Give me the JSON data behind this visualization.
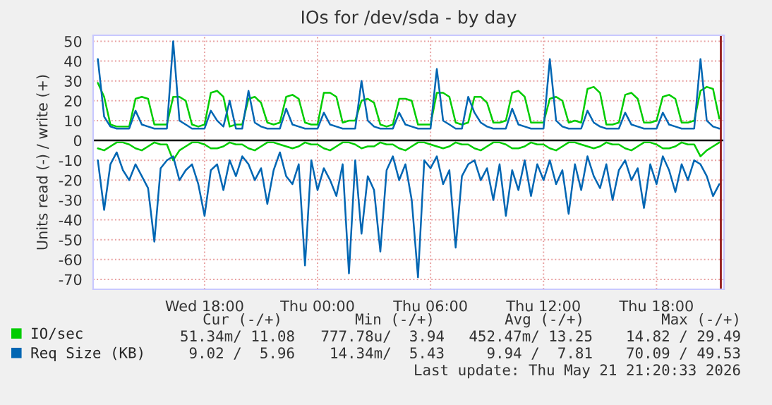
{
  "chart_data": {
    "type": "line",
    "title": "IOs for /dev/sda - by day",
    "ylabel": "Units read (-) / write (+)",
    "x": [
      "2026-05-20T12:20",
      "2026-05-20T12:40",
      "2026-05-20T13:00",
      "2026-05-20T13:20",
      "2026-05-20T13:40",
      "2026-05-20T14:00",
      "2026-05-20T14:20",
      "2026-05-20T14:40",
      "2026-05-20T15:00",
      "2026-05-20T15:20",
      "2026-05-20T15:40",
      "2026-05-20T16:00",
      "2026-05-20T16:20",
      "2026-05-20T16:40",
      "2026-05-20T17:00",
      "2026-05-20T17:20",
      "2026-05-20T17:40",
      "2026-05-20T18:00",
      "2026-05-20T18:20",
      "2026-05-20T18:40",
      "2026-05-20T19:00",
      "2026-05-20T19:20",
      "2026-05-20T19:40",
      "2026-05-20T20:00",
      "2026-05-20T20:20",
      "2026-05-20T20:40",
      "2026-05-20T21:00",
      "2026-05-20T21:20",
      "2026-05-20T21:40",
      "2026-05-20T22:00",
      "2026-05-20T22:20",
      "2026-05-20T22:40",
      "2026-05-20T23:00",
      "2026-05-20T23:20",
      "2026-05-20T23:40",
      "2026-05-21T00:00",
      "2026-05-21T00:20",
      "2026-05-21T00:40",
      "2026-05-21T01:00",
      "2026-05-21T01:20",
      "2026-05-21T01:40",
      "2026-05-21T02:00",
      "2026-05-21T02:20",
      "2026-05-21T02:40",
      "2026-05-21T03:00",
      "2026-05-21T03:20",
      "2026-05-21T03:40",
      "2026-05-21T04:00",
      "2026-05-21T04:20",
      "2026-05-21T04:40",
      "2026-05-21T05:00",
      "2026-05-21T05:20",
      "2026-05-21T05:40",
      "2026-05-21T06:00",
      "2026-05-21T06:20",
      "2026-05-21T06:40",
      "2026-05-21T07:00",
      "2026-05-21T07:20",
      "2026-05-21T07:40",
      "2026-05-21T08:00",
      "2026-05-21T08:20",
      "2026-05-21T08:40",
      "2026-05-21T09:00",
      "2026-05-21T09:20",
      "2026-05-21T09:40",
      "2026-05-21T10:00",
      "2026-05-21T10:20",
      "2026-05-21T10:40",
      "2026-05-21T11:00",
      "2026-05-21T11:20",
      "2026-05-21T11:40",
      "2026-05-21T12:00",
      "2026-05-21T12:20",
      "2026-05-21T12:40",
      "2026-05-21T13:00",
      "2026-05-21T13:20",
      "2026-05-21T13:40",
      "2026-05-21T14:00",
      "2026-05-21T14:20",
      "2026-05-21T14:40",
      "2026-05-21T15:00",
      "2026-05-21T15:20",
      "2026-05-21T15:40",
      "2026-05-21T16:00",
      "2026-05-21T16:20",
      "2026-05-21T16:40",
      "2026-05-21T17:00",
      "2026-05-21T17:20",
      "2026-05-21T17:40",
      "2026-05-21T18:00",
      "2026-05-21T18:20",
      "2026-05-21T18:40",
      "2026-05-21T19:00",
      "2026-05-21T19:20",
      "2026-05-21T19:40",
      "2026-05-21T20:00",
      "2026-05-21T20:20",
      "2026-05-21T20:40",
      "2026-05-21T21:00",
      "2026-05-21T21:20"
    ],
    "series": [
      {
        "color": "#00cc00",
        "values": [
          -4,
          -5,
          -3,
          -1,
          -1,
          -2,
          -4,
          -5,
          -3,
          -1,
          -2,
          -2,
          -10,
          -5,
          -3,
          -1,
          -1,
          -2,
          -4,
          -4,
          -3,
          -1,
          -2,
          -2,
          -4,
          -5,
          -3,
          -1,
          -1,
          -2,
          -3,
          -4,
          -3,
          -1,
          -2,
          -2,
          -4,
          -5,
          -3,
          -1,
          -1,
          -2,
          -4,
          -3,
          -3,
          -1,
          -2,
          -2,
          -4,
          -5,
          -3,
          -1,
          -1,
          -2,
          -3,
          -4,
          -3,
          -1,
          -2,
          -2,
          -4,
          -5,
          -3,
          -1,
          -1,
          -2,
          -4,
          -4,
          -3,
          -1,
          -2,
          -2,
          -4,
          -5,
          -3,
          -1,
          -1,
          -2,
          -3,
          -4,
          -3,
          -1,
          -2,
          -2,
          -4,
          -5,
          -3,
          -1,
          -1,
          -2,
          -4,
          -4,
          -3,
          -1,
          -2,
          -2,
          -8,
          -5,
          -3,
          -1
        ]
      },
      {
        "name": "IO/sec",
        "color": "#00cc00",
        "values": [
          29,
          22,
          8,
          7,
          7,
          7,
          21,
          22,
          21,
          8,
          8,
          8,
          22,
          22,
          20,
          8,
          7,
          8,
          24,
          25,
          22,
          7,
          8,
          8,
          21,
          22,
          19,
          9,
          8,
          9,
          22,
          23,
          21,
          9,
          8,
          8,
          24,
          24,
          22,
          9,
          10,
          10,
          20,
          21,
          19,
          8,
          7,
          8,
          21,
          21,
          20,
          8,
          8,
          8,
          24,
          24,
          22,
          9,
          8,
          9,
          22,
          22,
          19,
          9,
          9,
          10,
          24,
          25,
          22,
          9,
          9,
          9,
          21,
          22,
          20,
          9,
          10,
          9,
          26,
          27,
          24,
          8,
          8,
          9,
          23,
          24,
          21,
          9,
          9,
          10,
          22,
          23,
          21,
          9,
          9,
          10,
          25,
          27,
          26,
          11
        ]
      },
      {
        "color": "#0066b3",
        "values": [
          -10,
          -35,
          -12,
          -6,
          -15,
          -20,
          -12,
          -18,
          -24,
          -51,
          -14,
          -10,
          -8,
          -20,
          -15,
          -12,
          -22,
          -38,
          -15,
          -12,
          -25,
          -10,
          -18,
          -8,
          -12,
          -20,
          -14,
          -32,
          -15,
          -6,
          -18,
          -22,
          -12,
          -63,
          -10,
          -25,
          -14,
          -20,
          -28,
          -12,
          -67,
          -10,
          -47,
          -18,
          -25,
          -56,
          -15,
          -8,
          -20,
          -12,
          -30,
          -69,
          -10,
          -14,
          -8,
          -22,
          -15,
          -54,
          -18,
          -12,
          -10,
          -20,
          -14,
          -30,
          -12,
          -38,
          -15,
          -25,
          -10,
          -28,
          -12,
          -20,
          -10,
          -22,
          -15,
          -37,
          -12,
          -25,
          -8,
          -18,
          -24,
          -12,
          -30,
          -15,
          -10,
          -20,
          -14,
          -34,
          -12,
          -22,
          -8,
          -15,
          -26,
          -12,
          -20,
          -10,
          -12,
          -18,
          -28,
          -22
        ]
      },
      {
        "name": "Req Size (KB)",
        "color": "#0066b3",
        "values": [
          41,
          12,
          7,
          6,
          6,
          6,
          15,
          8,
          7,
          6,
          6,
          6,
          50,
          10,
          8,
          6,
          6,
          6,
          15,
          10,
          7,
          20,
          6,
          6,
          25,
          9,
          7,
          6,
          6,
          6,
          16,
          8,
          7,
          6,
          6,
          6,
          14,
          8,
          7,
          6,
          6,
          6,
          30,
          10,
          7,
          6,
          6,
          6,
          14,
          8,
          7,
          6,
          6,
          6,
          36,
          10,
          8,
          6,
          6,
          22,
          14,
          9,
          7,
          6,
          6,
          6,
          16,
          8,
          7,
          6,
          6,
          6,
          41,
          10,
          7,
          6,
          6,
          6,
          15,
          9,
          7,
          6,
          6,
          6,
          14,
          8,
          7,
          6,
          6,
          6,
          14,
          8,
          7,
          6,
          6,
          6,
          41,
          10,
          7,
          6
        ]
      }
    ],
    "xlim": [
      "2026-05-20T12:05",
      "2026-05-21T21:35"
    ],
    "xticks": [
      {
        "value": "2026-05-20T18:00",
        "label": "Wed 18:00"
      },
      {
        "value": "2026-05-21T00:00",
        "label": "Thu 00:00"
      },
      {
        "value": "2026-05-21T06:00",
        "label": "Thu 06:00"
      },
      {
        "value": "2026-05-21T12:00",
        "label": "Thu 12:00"
      },
      {
        "value": "2026-05-21T18:00",
        "label": "Thu 18:00"
      }
    ],
    "ylim": [
      -75,
      53
    ],
    "yticks": [
      -70,
      -60,
      -50,
      -40,
      -30,
      -20,
      -10,
      0,
      10,
      20,
      30,
      40,
      50
    ],
    "ref_lines": [
      {
        "axis": "y",
        "value": 0,
        "color": "#000000"
      },
      {
        "axis": "x",
        "value": "2026-05-21T21:25",
        "color": "#880000"
      }
    ],
    "grid": true,
    "legend": "bottom",
    "line_style": "solid",
    "annotations": [
      "Cur (-/+)",
      "Min (-/+)",
      "Avg (-/+)",
      "Max (-/+)",
      "51.34m/ 11.08",
      "777.78u/  3.94",
      "452.47m/ 13.25",
      "14.82 / 29.49",
      "9.02 /  5.96",
      "14.34m/  5.43",
      "9.94 /  7.81",
      "70.09 / 49.53",
      "Last update: Thu May 21 21:20:33 2026"
    ]
  }
}
